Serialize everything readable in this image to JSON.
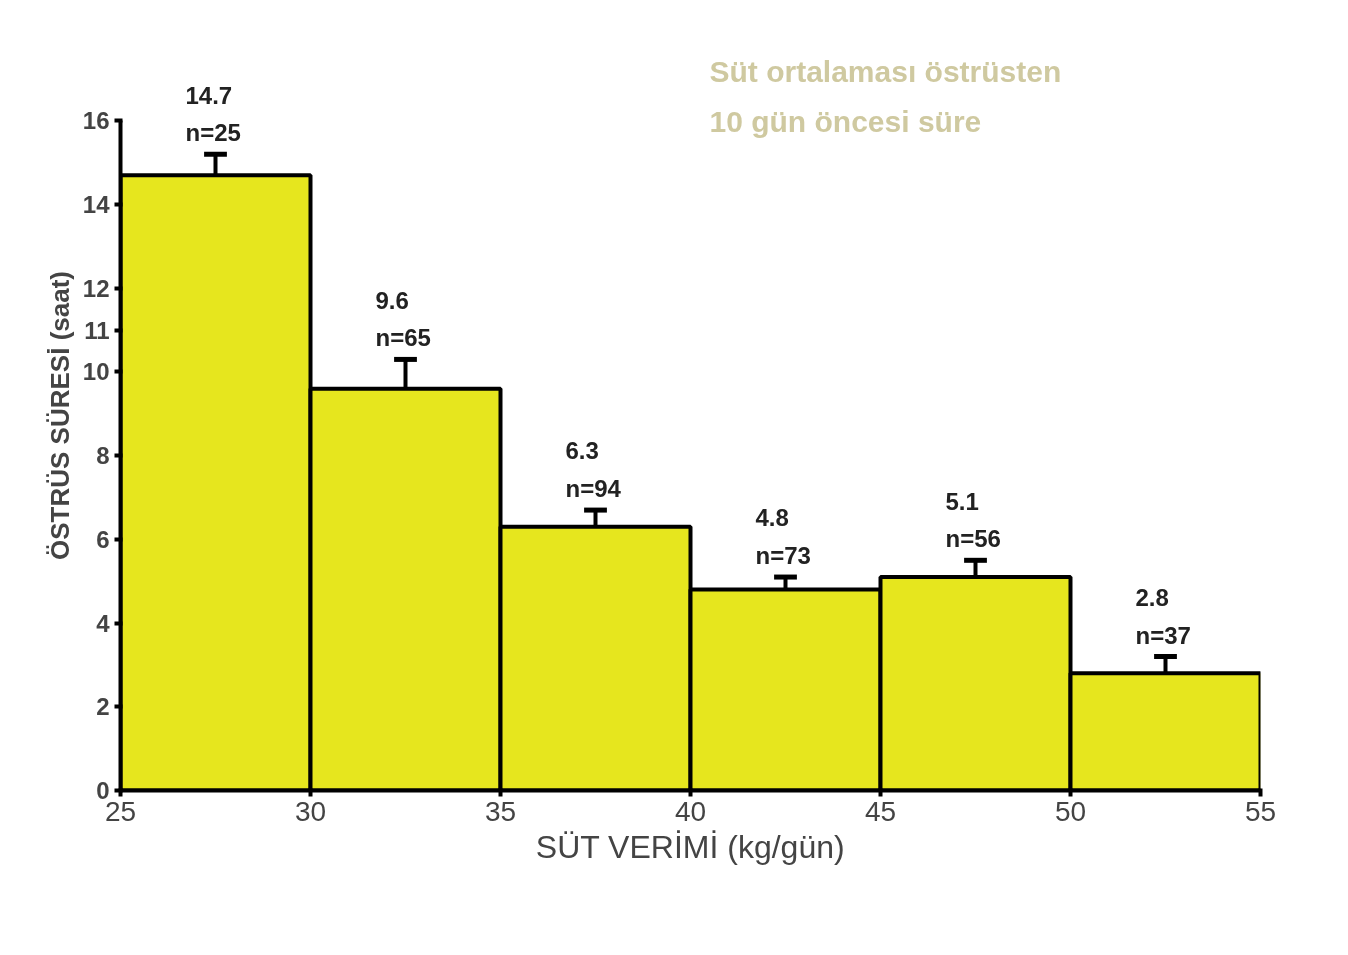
{
  "chart_data": {
    "type": "histogram",
    "xlabel": "SÜT VERİMİ (kg/gün)",
    "ylabel": "ÖSTRÜS SÜRESİ (saat)",
    "bins": [
      25,
      30,
      35,
      40,
      45,
      50,
      55
    ],
    "values": [
      14.7,
      9.6,
      6.3,
      4.8,
      5.1,
      2.8
    ],
    "errors": [
      0.5,
      0.7,
      0.4,
      0.3,
      0.4,
      0.4
    ],
    "value_labels": [
      "14.7\nn=25",
      "9.6\nn=65",
      "6.3\nn=94",
      "4.8\nn=73",
      "5.1\nn=56",
      "2.8\nn=37"
    ],
    "color": "#e6e61e",
    "xlim": [
      25,
      55
    ],
    "ylim": [
      0,
      16
    ],
    "xticks": [
      25,
      30,
      35,
      40,
      45,
      50,
      55
    ],
    "yticks": [
      0,
      2,
      4,
      6,
      8,
      10,
      11,
      12,
      14,
      16
    ],
    "grid": false,
    "annotations": [
      "Süt ortalaması östrüsten 10 gün öncesi  süre"
    ]
  }
}
